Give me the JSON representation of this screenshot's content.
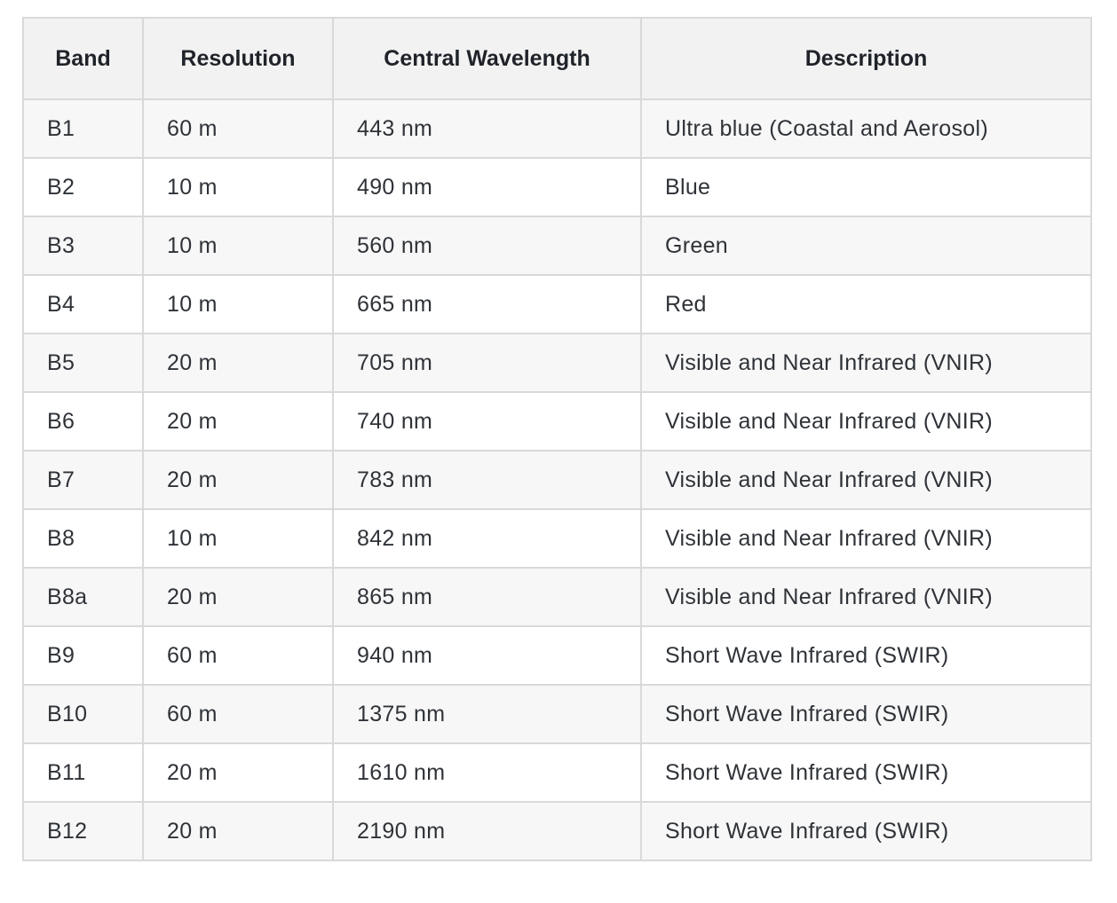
{
  "table": {
    "headers": [
      "Band",
      "Resolution",
      "Central Wavelength",
      "Description"
    ],
    "rows": [
      [
        "B1",
        "60 m",
        "443 nm",
        "Ultra blue (Coastal and Aerosol)"
      ],
      [
        "B2",
        "10 m",
        "490 nm",
        "Blue"
      ],
      [
        "B3",
        "10 m",
        "560 nm",
        "Green"
      ],
      [
        "B4",
        "10 m",
        "665 nm",
        "Red"
      ],
      [
        "B5",
        "20 m",
        "705 nm",
        "Visible and Near Infrared (VNIR)"
      ],
      [
        "B6",
        "20 m",
        "740 nm",
        "Visible and Near Infrared (VNIR)"
      ],
      [
        "B7",
        "20 m",
        "783 nm",
        "Visible and Near Infrared (VNIR)"
      ],
      [
        "B8",
        "10 m",
        "842 nm",
        "Visible and Near Infrared (VNIR)"
      ],
      [
        "B8a",
        "20 m",
        "865 nm",
        "Visible and Near Infrared (VNIR)"
      ],
      [
        "B9",
        "60 m",
        "940 nm",
        "Short Wave Infrared (SWIR)"
      ],
      [
        "B10",
        "60 m",
        "1375 nm",
        "Short Wave Infrared (SWIR)"
      ],
      [
        "B11",
        "20 m",
        "1610 nm",
        "Short Wave Infrared (SWIR)"
      ],
      [
        "B12",
        "20 m",
        "2190 nm",
        "Short Wave Infrared (SWIR)"
      ]
    ]
  }
}
